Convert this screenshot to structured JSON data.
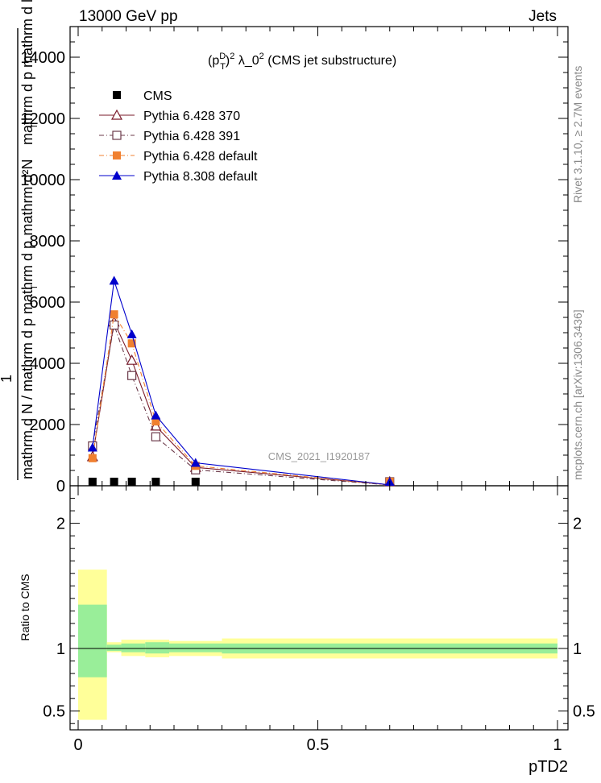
{
  "header": {
    "left": "13000 GeV pp",
    "right": "Jets"
  },
  "side_labels": {
    "rivet": "Rivet 3.1.10, ≥ 2.7M events",
    "mcplots": "mcplots.cern.ch [arXiv:1306.3436]"
  },
  "chart_data": {
    "type": "line",
    "title_parts": {
      "p": "(p",
      "sup_d": "D",
      "sub_t": "T",
      "close": ")",
      "sq": "2",
      "lam": " λ_0",
      "sq2": "2",
      "rest": " (CMS jet substructure)"
    },
    "watermark": "CMS_2021_I1920187",
    "ylabel": {
      "numerator": "mathrm d²N",
      "numerator_extra": "mathrm d p  mathrm d lambda",
      "numerator_sub": "T",
      "prefix": "1",
      "denominator": "mathrm d N / mathrm d p  mathrm d p",
      "denominator_sub": "T"
    },
    "xlabel": "pTD2",
    "xlim": [
      0,
      1
    ],
    "ylim": [
      0,
      15000
    ],
    "y_ticks": [
      0,
      2000,
      4000,
      6000,
      8000,
      10000,
      12000,
      14000
    ],
    "y_tick_labels": [
      "0",
      "2000",
      "4000",
      "6000",
      "8000",
      "10000",
      "12000",
      "14000"
    ],
    "x_ticks": [
      0,
      0.5,
      1
    ],
    "x_tick_labels": [
      "0",
      "0.5",
      "1"
    ],
    "x": [
      0.03,
      0.075,
      0.112,
      0.162,
      0.245,
      0.65
    ],
    "series": [
      {
        "name": "CMS",
        "marker": "square-filled",
        "color": "#000000",
        "dash": "none",
        "values": [
          40,
          80,
          70,
          40,
          30,
          15
        ]
      },
      {
        "name": "Pythia 6.428 370",
        "marker": "triangle-open",
        "color": "#7a1a2a",
        "dash": "none",
        "values": [
          950,
          5350,
          4100,
          1950,
          600,
          30
        ]
      },
      {
        "name": "Pythia 6.428 391",
        "marker": "square-open",
        "color": "#6b3a4a",
        "dash": "6,3,1,3",
        "values": [
          1300,
          5250,
          3600,
          1600,
          520,
          25
        ]
      },
      {
        "name": "Pythia 6.428 default",
        "marker": "square-filled",
        "color": "#f08030",
        "dash": "6,3,1,3",
        "values": [
          900,
          5600,
          4650,
          2100,
          650,
          30
        ]
      },
      {
        "name": "Pythia 8.308 default",
        "marker": "triangle-filled",
        "color": "#0000cc",
        "dash": "none",
        "values": [
          1250,
          6700,
          4950,
          2300,
          750,
          30
        ]
      }
    ],
    "ratio": {
      "ylabel": "Ratio to CMS",
      "ylim": [
        0.35,
        2.3
      ],
      "y_ticks": [
        0.5,
        1,
        2
      ],
      "y_tick_labels": [
        "0.5",
        "1",
        "2"
      ],
      "bin_edges": [
        0,
        0.06,
        0.09,
        0.14,
        0.19,
        0.3,
        1.0
      ],
      "band_1sigma": [
        [
          0.77,
          1.35
        ],
        [
          0.98,
          1.03
        ],
        [
          0.97,
          1.04
        ],
        [
          0.96,
          1.05
        ],
        [
          0.97,
          1.04
        ],
        [
          0.96,
          1.04
        ]
      ],
      "band_2sigma": [
        [
          0.43,
          1.63
        ],
        [
          0.97,
          1.05
        ],
        [
          0.94,
          1.07
        ],
        [
          0.93,
          1.07
        ],
        [
          0.94,
          1.06
        ],
        [
          0.92,
          1.08
        ]
      ],
      "band_1sigma_color": "#99ee99",
      "band_2sigma_color": "#ffff99"
    }
  }
}
